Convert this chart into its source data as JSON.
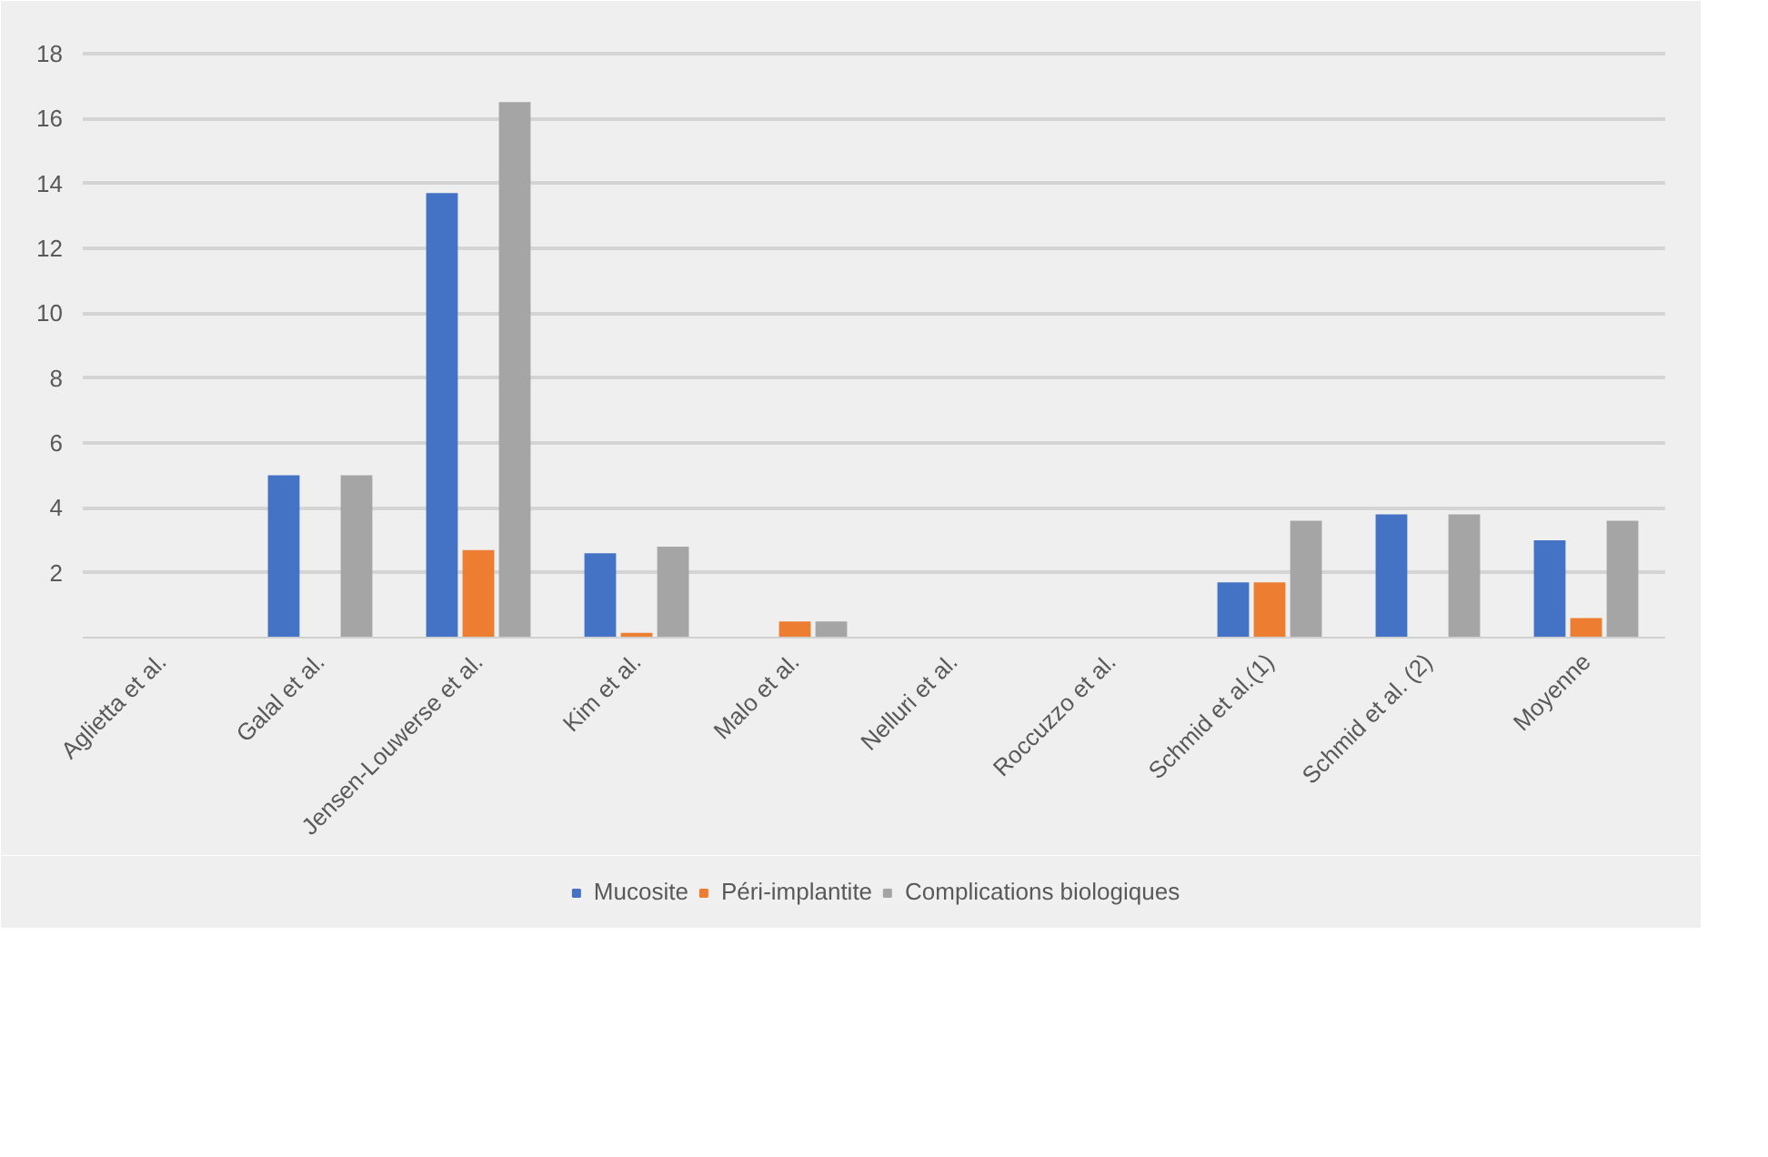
{
  "chart_data": {
    "type": "bar",
    "categories": [
      "Aglietta et al.",
      "Galal et al.",
      "Jensen-Louwerse et al.",
      "Kim et al.",
      "Malo et al.",
      "Nelluri et al.",
      "Roccuzzo et al.",
      "Schmid et al.(1)",
      "Schmid et al. (2)",
      "Moyenne"
    ],
    "series": [
      {
        "name": "Mucosite",
        "color": "#4472c4",
        "values": [
          0,
          5,
          13.7,
          2.6,
          0,
          0,
          0,
          1.7,
          3.8,
          3.0
        ]
      },
      {
        "name": "Péri-implantite",
        "color": "#ed7d31",
        "values": [
          0,
          0,
          2.7,
          0.15,
          0.5,
          0,
          0,
          1.7,
          0,
          0.6
        ]
      },
      {
        "name": "Complications biologiques",
        "color": "#a5a5a5",
        "values": [
          0,
          5,
          16.5,
          2.8,
          0.5,
          0,
          0,
          3.6,
          3.8,
          3.6
        ]
      }
    ],
    "ylim": [
      0,
      18.5
    ],
    "yticks": [
      {
        "value": 0,
        "label": null
      },
      2,
      4,
      6,
      8,
      10,
      12,
      14,
      16,
      18
    ],
    "grid": "y",
    "legend": "bottom"
  }
}
